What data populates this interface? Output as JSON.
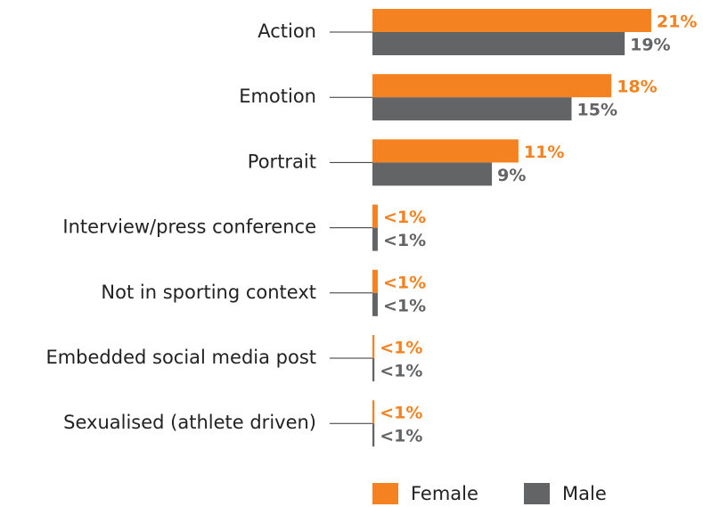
{
  "chart_data": {
    "type": "bar",
    "orientation": "horizontal",
    "categories": [
      "Action",
      "Emotion",
      "Portrait",
      "Interview/press conference",
      "Not in sporting context",
      "Embedded social media post",
      "Sexualised (athlete driven)"
    ],
    "series": [
      {
        "name": "Female",
        "color": "#f58220",
        "values": [
          21,
          18,
          11,
          0.4,
          0.4,
          0.15,
          0.15
        ],
        "value_labels": [
          "21%",
          "18%",
          "11%",
          "<1%",
          "<1%",
          "<1%",
          "<1%"
        ]
      },
      {
        "name": "Male",
        "color": "#636466",
        "values": [
          19,
          15,
          9,
          0.4,
          0.4,
          0.15,
          0.15
        ],
        "value_labels": [
          "19%",
          "15%",
          "9%",
          "<1%",
          "<1%",
          "<1%",
          "<1%"
        ]
      }
    ]
  }
}
